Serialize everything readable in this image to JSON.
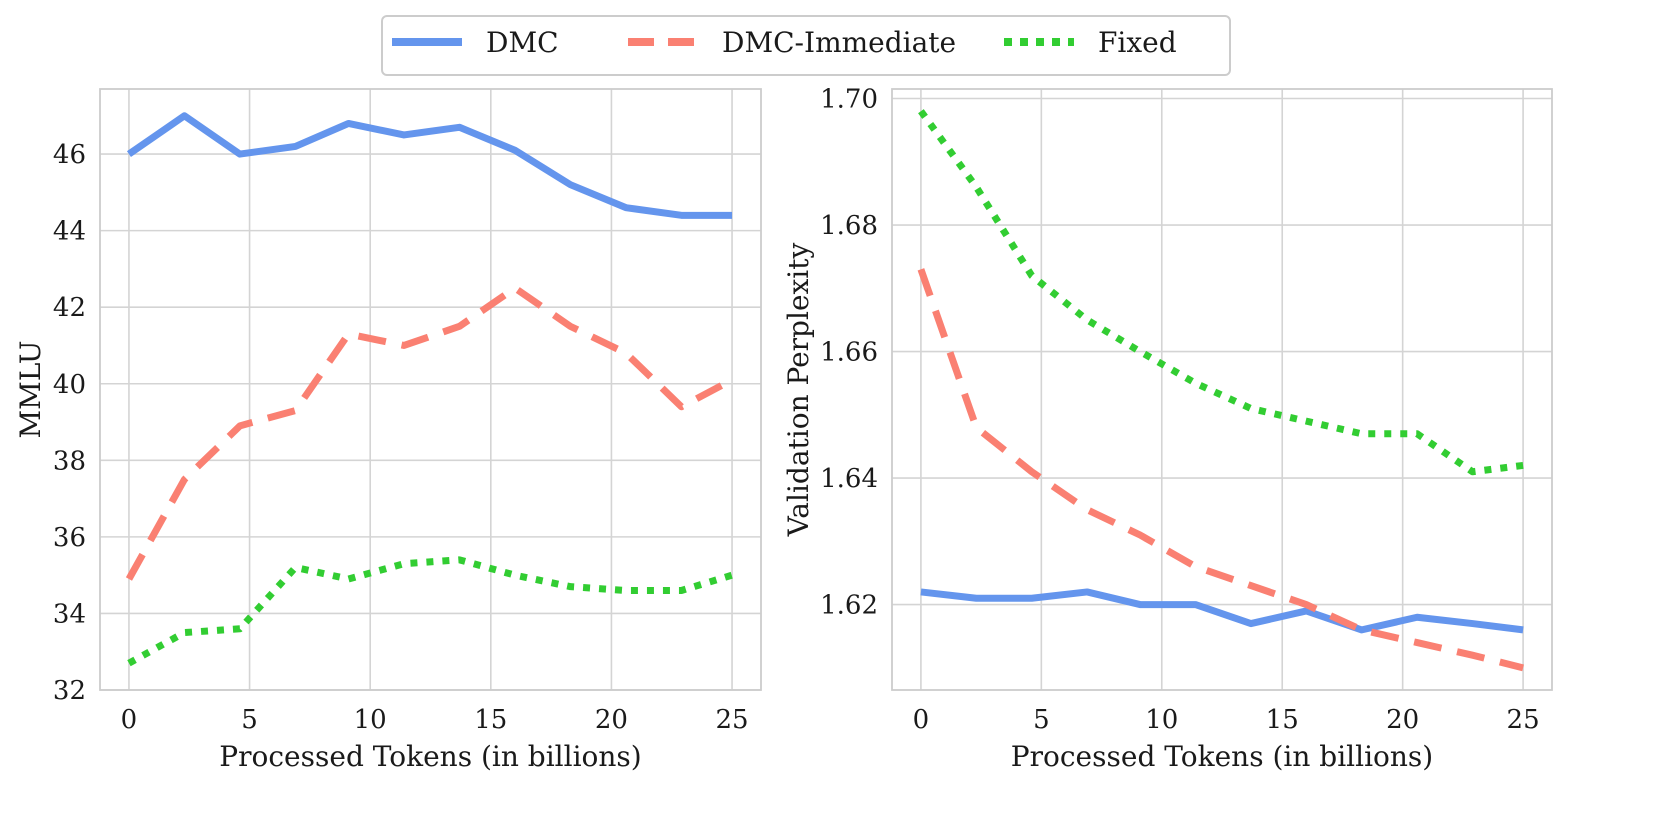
{
  "legend": {
    "entries": [
      {
        "name": "DMC",
        "color": "#6495ED",
        "style": "solid"
      },
      {
        "name": "DMC-Immediate",
        "color": "#FA8072",
        "style": "dashed"
      },
      {
        "name": "Fixed",
        "color": "#32CD32",
        "style": "dotted"
      }
    ]
  },
  "chart_data": [
    {
      "type": "line",
      "title": "",
      "xlabel": "Processed Tokens (in billions)",
      "ylabel": "MMLU",
      "xlim": [
        -1.2,
        26.2
      ],
      "ylim": [
        32,
        47.7
      ],
      "xticks": [
        0,
        5,
        10,
        15,
        20,
        25
      ],
      "yticks": [
        32,
        34,
        36,
        38,
        40,
        42,
        44,
        46
      ],
      "xtick_labels": [
        "0",
        "5",
        "10",
        "15",
        "20",
        "25"
      ],
      "ytick_labels": [
        "32",
        "34",
        "36",
        "38",
        "40",
        "42",
        "44",
        "46"
      ],
      "grid": true,
      "x": [
        0,
        2.3,
        4.6,
        6.9,
        9.1,
        11.4,
        13.7,
        16.0,
        18.3,
        20.6,
        22.9,
        25.0
      ],
      "series": [
        {
          "name": "DMC",
          "values": [
            46.0,
            47.0,
            46.0,
            46.2,
            46.8,
            46.5,
            46.7,
            46.1,
            45.2,
            44.6,
            44.4,
            44.4
          ]
        },
        {
          "name": "DMC-Immediate",
          "values": [
            34.9,
            37.5,
            38.9,
            39.3,
            41.3,
            41.0,
            41.5,
            42.5,
            41.5,
            40.8,
            39.4,
            40.1
          ]
        },
        {
          "name": "Fixed",
          "values": [
            32.7,
            33.5,
            33.6,
            35.2,
            34.9,
            35.3,
            35.4,
            35.0,
            34.7,
            34.6,
            34.6,
            35.0
          ]
        }
      ]
    },
    {
      "type": "line",
      "title": "",
      "xlabel": "Processed Tokens (in billions)",
      "ylabel": "Validation Perplexity",
      "xlim": [
        -1.2,
        26.2
      ],
      "ylim": [
        1.6065,
        1.7015
      ],
      "xticks": [
        0,
        5,
        10,
        15,
        20,
        25
      ],
      "yticks": [
        1.62,
        1.64,
        1.66,
        1.68,
        1.7
      ],
      "xtick_labels": [
        "0",
        "5",
        "10",
        "15",
        "20",
        "25"
      ],
      "ytick_labels": [
        "1.62",
        "1.64",
        "1.66",
        "1.68",
        "1.70"
      ],
      "grid": true,
      "x": [
        0,
        2.3,
        4.6,
        6.9,
        9.1,
        11.4,
        13.7,
        16.0,
        18.3,
        20.6,
        22.9,
        25.0
      ],
      "series": [
        {
          "name": "DMC",
          "values": [
            1.622,
            1.621,
            1.621,
            1.622,
            1.62,
            1.62,
            1.617,
            1.619,
            1.616,
            1.618,
            1.617,
            1.616
          ]
        },
        {
          "name": "DMC-Immediate",
          "values": [
            1.673,
            1.648,
            1.641,
            1.635,
            1.631,
            1.626,
            1.623,
            1.62,
            1.616,
            1.614,
            1.612,
            1.61
          ]
        },
        {
          "name": "Fixed",
          "values": [
            1.698,
            1.686,
            1.672,
            1.665,
            1.66,
            1.655,
            1.651,
            1.649,
            1.647,
            1.647,
            1.641,
            1.642
          ]
        }
      ]
    }
  ]
}
